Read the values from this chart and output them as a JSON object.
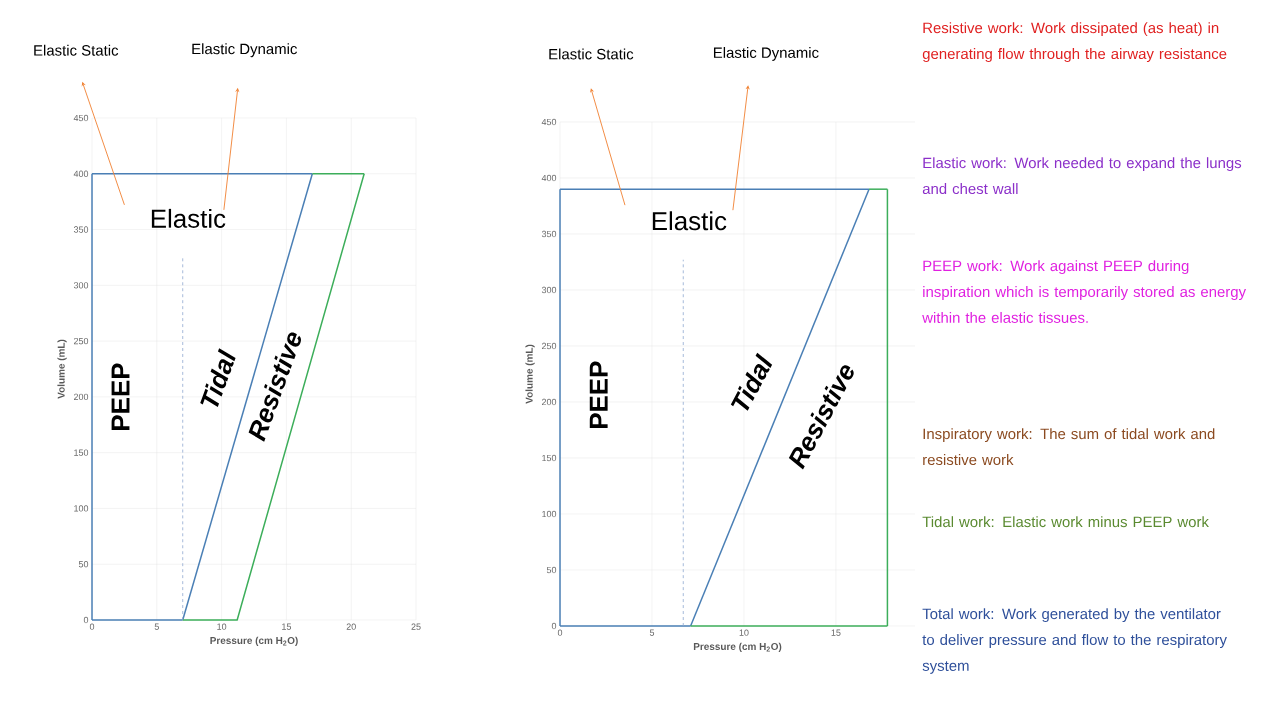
{
  "chart_data": [
    {
      "type": "line",
      "xlabel": "Pressure (cm H$_{2}$O)",
      "ylabel": "Volume (mL)",
      "xlim": [
        0,
        25
      ],
      "ylim": [
        0,
        450
      ],
      "xticks": [
        0,
        5,
        10,
        15,
        20,
        25
      ],
      "yticks": [
        0,
        50,
        100,
        150,
        200,
        250,
        300,
        350,
        400,
        450
      ],
      "grid": true,
      "marker": "none",
      "series": [
        {
          "color": "#4a7fb5",
          "x": [
            0,
            7
          ],
          "values": [
            0,
            0
          ]
        },
        {
          "color": "#4a7fb5",
          "x": [
            0,
            0
          ],
          "values": [
            0,
            400
          ]
        },
        {
          "color": "#4a7fb5",
          "x": [
            0,
            17
          ],
          "values": [
            400,
            400
          ]
        },
        {
          "color": "#4a7fb5",
          "x": [
            7,
            17
          ],
          "values": [
            0,
            400
          ]
        },
        {
          "color": "#3cae5a",
          "x": [
            7,
            11.2,
            21
          ],
          "values": [
            0,
            0,
            400
          ]
        },
        {
          "color": "#3cae5a",
          "x": [
            17,
            21
          ],
          "values": [
            400,
            400
          ]
        },
        {
          "color": "#8fa8d0",
          "line_style": "dashed",
          "x": [
            7,
            7
          ],
          "values": [
            0,
            325
          ]
        }
      ],
      "annotations": [
        "Elastic Static",
        "Elastic Dynamic",
        "Elastic",
        "PEEP",
        "Tidal",
        "Resistive"
      ]
    },
    {
      "type": "line",
      "xlabel": "Pressure (cm H$_{2}$O)",
      "ylabel": "Volume (mL)",
      "xlim": [
        0,
        19.3
      ],
      "ylim": [
        0,
        450
      ],
      "xticks": [
        0,
        5,
        10,
        15
      ],
      "yticks": [
        0,
        50,
        100,
        150,
        200,
        250,
        300,
        350,
        400,
        450
      ],
      "grid": true,
      "marker": "none",
      "series": [
        {
          "color": "#4a7fb5",
          "x": [
            0,
            7.1
          ],
          "values": [
            0,
            0
          ]
        },
        {
          "color": "#4a7fb5",
          "x": [
            0,
            0
          ],
          "values": [
            0,
            390
          ]
        },
        {
          "color": "#4a7fb5",
          "x": [
            0,
            16.8
          ],
          "values": [
            390,
            390
          ]
        },
        {
          "color": "#4a7fb5",
          "x": [
            7.1,
            16.8
          ],
          "values": [
            0,
            390
          ]
        },
        {
          "color": "#3cae5a",
          "x": [
            7.1,
            17.8
          ],
          "values": [
            0,
            0
          ]
        },
        {
          "color": "#3cae5a",
          "x": [
            17.8,
            17.8
          ],
          "values": [
            0,
            390
          ]
        },
        {
          "color": "#3cae5a",
          "x": [
            16.8,
            17.8
          ],
          "values": [
            390,
            390
          ]
        },
        {
          "color": "#8fa8d0",
          "line_style": "dashed",
          "x": [
            6.7,
            6.7
          ],
          "values": [
            0,
            327
          ]
        }
      ],
      "annotations": [
        "Elastic Static",
        "Elastic Dynamic",
        "Elastic",
        "PEEP",
        "Tidal",
        "Resistive"
      ]
    },
    {
      "type": "other",
      "annotations": [
        "Resistive work: Work dissipated (as heat) in generating flow through the airway resistance",
        "Elastic work: Work needed to expand the lungs and chest wall",
        "PEEP work: Work against PEEP during inspiration which is temporarily stored as energy within the elastic tissues.",
        "Inspiratory work: The sum of tidal work and resistive work",
        "Tidal work: Elastic work minus PEEP work",
        "Total work: Work generated by the ventilator to deliver pressure and flow to the respiratory system"
      ],
      "colors": [
        "#e02020",
        "#8b2fc9",
        "#e020e0",
        "#8b4a20",
        "#5a8a30",
        "#2e4f9a"
      ]
    }
  ]
}
